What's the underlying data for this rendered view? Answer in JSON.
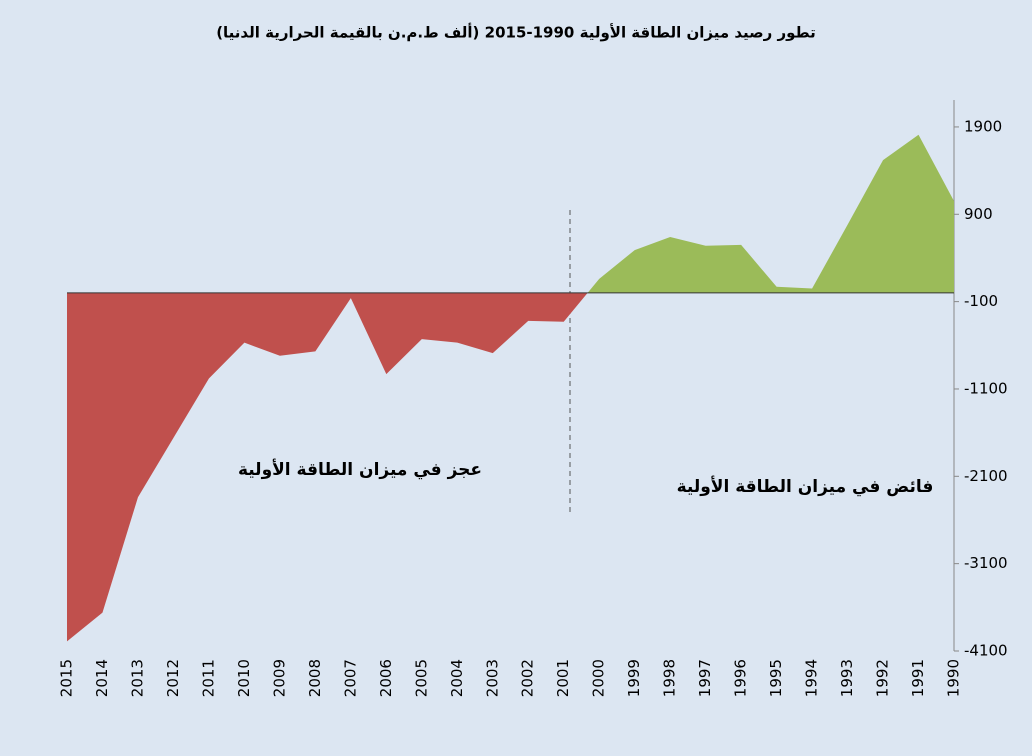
{
  "chart_data": {
    "type": "area",
    "title": "تطور رصيد ميزان الطاقة الأولية 1990-2015 (ألف ط.م.ن بالقيمة الحرارية الدنيا)",
    "categories": [
      "2015",
      "2014",
      "2013",
      "2012",
      "2011",
      "2010",
      "2009",
      "2008",
      "2007",
      "2006",
      "2005",
      "2004",
      "2003",
      "2002",
      "2001",
      "2000",
      "1999",
      "1998",
      "1997",
      "1996",
      "1995",
      "1994",
      "1993",
      "1992",
      "1991",
      "1990"
    ],
    "values": [
      -3990,
      -3660,
      -2340,
      -1660,
      -980,
      -570,
      -720,
      -670,
      -60,
      -930,
      -530,
      -570,
      -690,
      -320,
      -330,
      160,
      490,
      640,
      540,
      550,
      70,
      50,
      780,
      1520,
      1810,
      1050
    ],
    "positive_color": "#9bbb59",
    "negative_color": "#c0504d",
    "ylim": [
      -4100,
      2300
    ],
    "yticks": [
      -4100,
      -3100,
      -2100,
      -1100,
      -100,
      900,
      1900
    ],
    "axis_side": "right",
    "annotations": [
      "عجز في ميزان الطاقة الأولية",
      "فائض في ميزان الطاقة الأولية"
    ]
  }
}
